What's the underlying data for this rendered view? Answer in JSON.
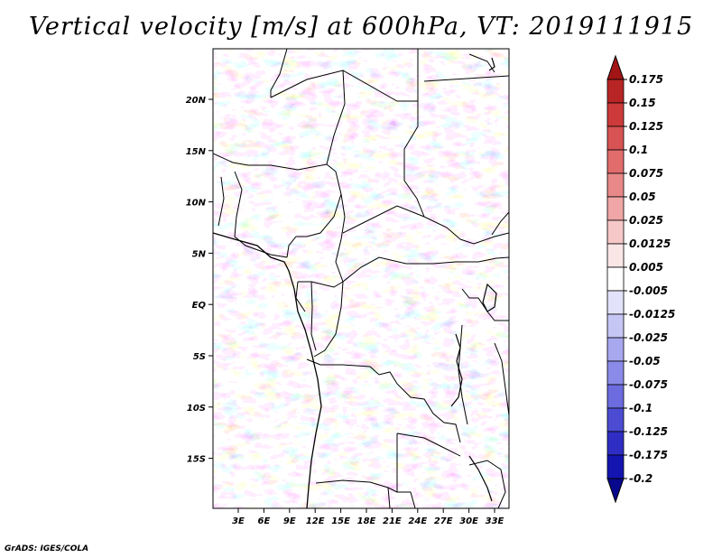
{
  "title": "Vertical velocity [m/s] at 600hPa, VT: 2019111915",
  "credit": "GrADS: IGES/COLA",
  "map": {
    "lon_ticks": [
      "3E",
      "6E",
      "9E",
      "12E",
      "15E",
      "18E",
      "21E",
      "24E",
      "27E",
      "30E",
      "33E"
    ],
    "lat_ticks": [
      "20N",
      "15N",
      "10N",
      "5N",
      "EQ",
      "5S",
      "10S",
      "15S"
    ]
  },
  "colorbar": {
    "levels": [
      "0.175",
      "0.15",
      "0.125",
      "0.1",
      "0.075",
      "0.05",
      "0.025",
      "0.0125",
      "0.005",
      "-0.005",
      "-0.0125",
      "-0.025",
      "-0.05",
      "-0.075",
      "-0.1",
      "-0.125",
      "-0.175",
      "-0.2"
    ],
    "colors": [
      "#a31515",
      "#b82525",
      "#cc3a3a",
      "#d85353",
      "#e06c6c",
      "#e88888",
      "#f0a6a6",
      "#f7c8c8",
      "#fbe6e6",
      "#ffffff",
      "#e2e2fb",
      "#c6c6f5",
      "#a8a8ef",
      "#8a8ae8",
      "#6c6cde",
      "#4c4cd2",
      "#2e2ec4",
      "#1414b0",
      "#08088c"
    ]
  }
}
